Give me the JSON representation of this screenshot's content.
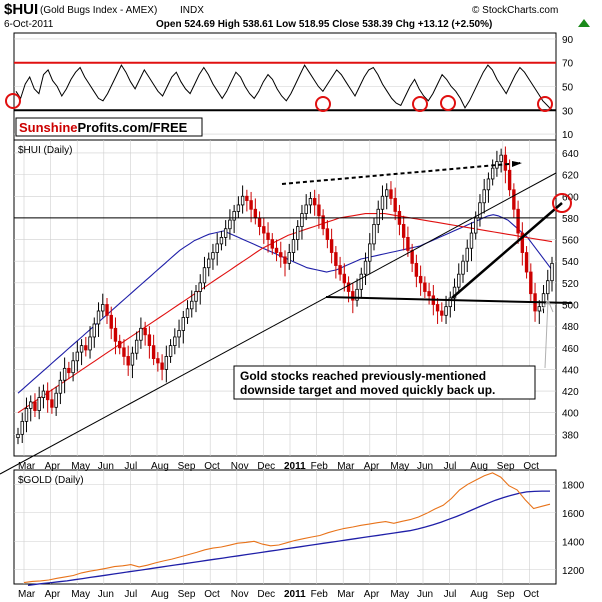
{
  "header": {
    "symbol": "$HUI",
    "name": "(Gold Bugs Index - AMEX)",
    "exchange": "INDX",
    "date": "6-Oct-2011",
    "ohlc_line": "Open 524.69   High 538.61   Low 518.95   Close 538.39   Chg +13.12 (+2.50%)",
    "ohlc_direction_icon": "up-triangle-icon",
    "watermark": "© StockCharts.com"
  },
  "brand": {
    "sunshine": "Sunshine",
    "rest": "Profits.com/FREE"
  },
  "colors": {
    "background": "#ffffff",
    "grid": "#cfcfcf",
    "price_up": "#000000",
    "price_down": "#cc0000",
    "ma_short": "#1f1fa8",
    "ma_long": "#e01010",
    "rsi_bound": "#e01010",
    "rsi_line": "#000000",
    "gold_price": "#e8731a",
    "gold_ma": "#1f1fa8",
    "marker_circle": "#e01010",
    "trendline": "#000000"
  },
  "chart_data": [
    {
      "type": "line",
      "panel": "rsi",
      "title": "",
      "ylim": [
        5,
        95
      ],
      "y_ticks": [
        90,
        70,
        50,
        30,
        10
      ],
      "reference_lines": [
        70,
        30
      ],
      "series": [
        {
          "values": [
            46,
            40,
            52,
            58,
            48,
            44,
            60,
            64,
            55,
            50,
            42,
            48,
            56,
            62,
            66,
            58,
            52,
            46,
            40,
            38,
            44,
            52,
            60,
            68,
            62,
            54,
            48,
            56,
            64,
            58,
            52,
            46,
            42,
            50,
            58,
            62,
            54,
            48,
            44,
            52,
            60,
            66,
            60,
            52,
            46,
            40,
            46,
            54,
            62,
            58,
            50,
            44,
            40,
            46,
            54,
            60,
            56,
            48,
            42,
            38,
            44,
            52,
            60,
            68,
            62,
            56,
            50,
            46,
            52,
            58,
            64,
            60,
            54,
            48,
            42,
            50,
            58,
            64,
            66,
            60,
            52,
            46,
            40,
            36,
            34,
            42,
            50,
            56,
            48,
            42,
            38,
            44,
            52,
            60,
            56,
            50,
            46,
            40,
            32,
            38,
            46,
            54,
            62,
            68,
            64,
            56,
            50,
            44,
            52,
            60,
            66,
            62,
            56,
            50,
            44,
            38,
            34,
            30
          ]
        }
      ]
    },
    {
      "type": "line",
      "panel": "price",
      "title": "",
      "series_labels": [
        "$HUI (Daily)"
      ],
      "ylim": [
        360,
        652
      ],
      "y_ticks": [
        640,
        620,
        600,
        580,
        560,
        540,
        520,
        500,
        480,
        460,
        440,
        420,
        400,
        380
      ],
      "x_ticks": [
        "Mar",
        "Apr",
        "May",
        "Jun",
        "Jul",
        "Aug",
        "Sep",
        "Oct",
        "Nov",
        "Dec",
        "2011",
        "Feb",
        "Mar",
        "Apr",
        "May",
        "Jun",
        "Jul",
        "Aug",
        "Sep",
        "Oct"
      ],
      "series": [
        {
          "values": [
            380,
            392,
            404,
            410,
            402,
            414,
            420,
            412,
            405,
            418,
            430,
            441,
            437,
            448,
            456,
            462,
            458,
            470,
            482,
            494,
            500,
            490,
            478,
            466,
            460,
            452,
            444,
            455,
            467,
            478,
            472,
            462,
            450,
            446,
            440,
            452,
            462,
            470,
            476,
            488,
            496,
            503,
            512,
            520,
            534,
            542,
            548,
            556,
            562,
            570,
            578,
            586,
            592,
            600,
            596,
            588,
            580,
            572,
            566,
            560,
            552,
            548,
            544,
            538,
            548,
            560,
            572,
            584,
            592,
            598,
            592,
            582,
            570,
            560,
            548,
            536,
            528,
            520,
            512,
            504,
            514,
            528,
            540,
            556,
            574,
            588,
            600,
            606,
            598,
            586,
            574,
            562,
            550,
            538,
            526,
            520,
            512,
            508,
            500,
            494,
            490,
            498,
            506,
            516,
            528,
            540,
            552,
            566,
            580,
            594,
            606,
            616,
            626,
            632,
            638,
            624,
            606,
            588,
            566,
            548,
            530,
            510,
            494,
            498,
            510,
            522,
            538
          ]
        },
        {
          "values": [
            418,
            422,
            426,
            430,
            434,
            438,
            442,
            446,
            450,
            454,
            458,
            462,
            466,
            470,
            474,
            478,
            482,
            486,
            490,
            494,
            498,
            502,
            506,
            510,
            514,
            518,
            522,
            526,
            530,
            534,
            538,
            542,
            546,
            550,
            553,
            556,
            559,
            561,
            563,
            565,
            566,
            567,
            568,
            566,
            564,
            562,
            560,
            558,
            556,
            554,
            552,
            550,
            548,
            546,
            544,
            542,
            540,
            538,
            536,
            534,
            533,
            532,
            531,
            530,
            531,
            532,
            534,
            536,
            538,
            540,
            542,
            543,
            544,
            545,
            546,
            547,
            548,
            549,
            550,
            551,
            552,
            553,
            554,
            556,
            558,
            560,
            562,
            564,
            566,
            568,
            570,
            572,
            574,
            576,
            578,
            580,
            582,
            583,
            582,
            580,
            578,
            574,
            570,
            566,
            562,
            556,
            550,
            544,
            538,
            532
          ]
        },
        {
          "values": [
            400,
            404,
            408,
            412,
            416,
            420,
            424,
            428,
            432,
            436,
            440,
            444,
            448,
            452,
            456,
            460,
            464,
            468,
            472,
            476,
            480,
            484,
            488,
            492,
            496,
            500,
            504,
            508,
            512,
            516,
            520,
            524,
            528,
            532,
            536,
            540,
            544,
            548,
            552,
            555,
            558,
            561,
            564,
            566,
            568,
            570,
            572,
            574,
            576,
            578,
            580,
            581,
            582,
            583,
            584,
            584,
            584,
            584,
            583,
            582,
            581,
            580,
            579,
            578,
            577,
            576,
            575,
            574,
            573,
            572,
            571,
            570,
            569,
            568,
            567,
            566,
            565,
            564,
            563,
            562,
            561,
            560,
            559,
            558
          ]
        }
      ],
      "trendlines_price_level": [
        580,
        480
      ]
    },
    {
      "type": "line",
      "panel": "gold",
      "title": "",
      "series_labels": [
        "$GOLD (Daily)"
      ],
      "ylim": [
        1100,
        1900
      ],
      "y_ticks": [
        1800,
        1600,
        1400,
        1200
      ],
      "x_ticks": [
        "Mar",
        "Apr",
        "May",
        "Jun",
        "Jul",
        "Aug",
        "Sep",
        "Oct",
        "Nov",
        "Dec",
        "2011",
        "Feb",
        "Mar",
        "Apr",
        "May",
        "Jun",
        "Jul",
        "Aug",
        "Sep",
        "Oct"
      ],
      "series": [
        {
          "values": [
            1110,
            1118,
            1122,
            1128,
            1140,
            1150,
            1160,
            1178,
            1190,
            1200,
            1210,
            1222,
            1228,
            1236,
            1220,
            1232,
            1248,
            1262,
            1275,
            1290,
            1306,
            1322,
            1340,
            1352,
            1360,
            1372,
            1386,
            1392,
            1400,
            1380,
            1368,
            1374,
            1390,
            1406,
            1418,
            1430,
            1440,
            1460,
            1476,
            1490,
            1500,
            1512,
            1520,
            1530,
            1538,
            1526,
            1540,
            1552,
            1570,
            1596,
            1626,
            1652,
            1700,
            1760,
            1800,
            1830,
            1860,
            1880,
            1850,
            1790,
            1760,
            1690,
            1630,
            1645,
            1660
          ]
        },
        {
          "values": [
            1090,
            1098,
            1104,
            1110,
            1116,
            1122,
            1130,
            1138,
            1146,
            1154,
            1162,
            1170,
            1178,
            1186,
            1194,
            1202,
            1210,
            1218,
            1226,
            1234,
            1242,
            1250,
            1258,
            1266,
            1274,
            1282,
            1290,
            1298,
            1306,
            1314,
            1322,
            1330,
            1338,
            1346,
            1354,
            1362,
            1370,
            1378,
            1386,
            1394,
            1402,
            1410,
            1418,
            1426,
            1434,
            1442,
            1450,
            1458,
            1466,
            1474,
            1486,
            1500,
            1516,
            1534,
            1554,
            1574,
            1596,
            1620,
            1644,
            1666,
            1688,
            1706,
            1722,
            1736,
            1746,
            1750,
            1752,
            1752
          ]
        }
      ]
    }
  ],
  "annotation": {
    "line1": "Gold stocks reached previously-mentioned",
    "line2": "downside target and moved quickly back up."
  }
}
